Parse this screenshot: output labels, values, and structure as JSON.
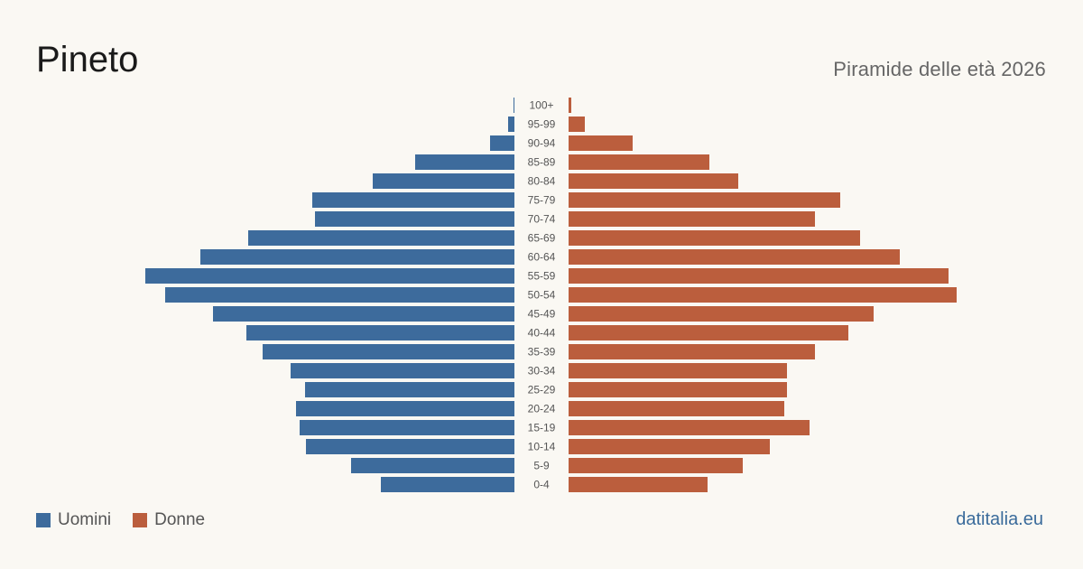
{
  "header": {
    "title": "Pineto",
    "subtitle": "Piramide delle età 2026"
  },
  "legend": {
    "men_label": "Uomini",
    "women_label": "Donne"
  },
  "footer": {
    "source": "datitalia.eu"
  },
  "colors": {
    "men": "#3d6b9c",
    "women": "#bb5e3d",
    "background": "#faf8f3",
    "label_text": "#555555"
  },
  "chart_data": {
    "type": "bar",
    "orientation": "horizontal-population-pyramid",
    "categories": [
      "100+",
      "95-99",
      "90-94",
      "85-89",
      "80-84",
      "75-79",
      "70-74",
      "65-69",
      "60-64",
      "55-59",
      "50-54",
      "45-49",
      "40-44",
      "35-39",
      "30-34",
      "25-29",
      "20-24",
      "15-19",
      "10-14",
      "5-9",
      "0-4"
    ],
    "series": [
      {
        "name": "Uomini",
        "values": [
          1,
          7,
          27,
          110,
          157,
          224,
          221,
          295,
          348,
          409,
          387,
          334,
          297,
          279,
          248,
          232,
          242,
          238,
          231,
          181,
          148
        ]
      },
      {
        "name": "Donne",
        "values": [
          3,
          18,
          71,
          156,
          188,
          301,
          273,
          323,
          367,
          421,
          430,
          338,
          310,
          273,
          242,
          242,
          239,
          267,
          223,
          193,
          154
        ]
      }
    ],
    "xlim": [
      0,
      430
    ],
    "grid": false,
    "legend_position": "bottom-left"
  }
}
